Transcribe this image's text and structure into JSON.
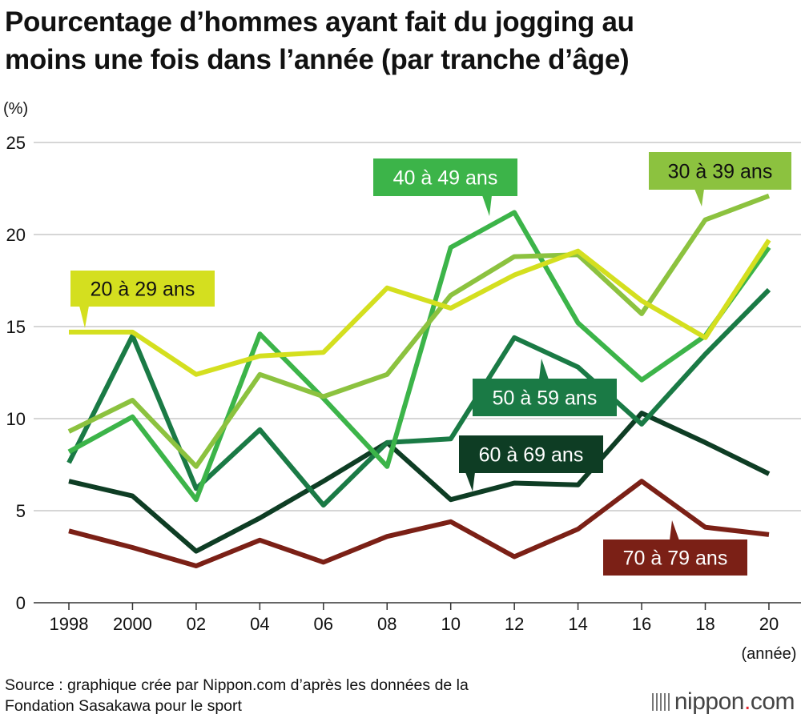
{
  "title_lines": [
    "Pourcentage d’hommes ayant fait du jogging au",
    "moins une fois dans l’année (par tranche d’âge)"
  ],
  "source_lines": [
    "Source : graphique crée par Nippon.com d’après les données de la",
    "Fondation Sasakawa pour le sport"
  ],
  "brand": {
    "text": "nippon",
    "dot": ".",
    "suffix": "com",
    "dot_color": "#e3262d"
  },
  "chart_data": {
    "type": "line",
    "x": [
      "1998",
      "2000",
      "02",
      "04",
      "06",
      "08",
      "10",
      "12",
      "14",
      "16",
      "18",
      "20"
    ],
    "ylabel": "(%)",
    "xlabel": "(année)",
    "ylim": [
      0,
      25
    ],
    "yticks": [
      "0",
      "5",
      "10",
      "15",
      "20",
      "25"
    ],
    "grid": true,
    "series": [
      {
        "name": "20 à 29 ans",
        "color": "#d4df1f",
        "text_color": "#111111",
        "values": [
          14.7,
          14.7,
          12.4,
          13.4,
          13.6,
          17.1,
          16.0,
          17.8,
          19.1,
          16.4,
          14.4,
          19.7
        ]
      },
      {
        "name": "30 à 39 ans",
        "color": "#8cc23f",
        "text_color": "#111111",
        "values": [
          9.3,
          11.0,
          7.4,
          12.4,
          11.2,
          12.4,
          16.7,
          18.8,
          18.9,
          15.7,
          20.8,
          22.1
        ]
      },
      {
        "name": "40 à 49 ans",
        "color": "#3cb449",
        "text_color": "#ffffff",
        "values": [
          8.2,
          10.1,
          5.6,
          14.6,
          11.1,
          7.4,
          19.3,
          21.2,
          15.2,
          12.1,
          14.5,
          19.3
        ]
      },
      {
        "name": "50 à 59 ans",
        "color": "#1a7a45",
        "text_color": "#ffffff",
        "values": [
          7.6,
          14.5,
          6.2,
          9.4,
          5.3,
          8.7,
          8.9,
          14.4,
          12.8,
          9.7,
          13.5,
          17.0
        ]
      },
      {
        "name": "60 à 69 ans",
        "color": "#0e3d24",
        "text_color": "#ffffff",
        "values": [
          6.6,
          5.8,
          2.8,
          4.6,
          6.6,
          8.7,
          5.6,
          6.5,
          6.4,
          10.3,
          8.7,
          7.0
        ]
      },
      {
        "name": "70 à 79 ans",
        "color": "#7b2016",
        "text_color": "#ffffff",
        "values": [
          3.9,
          3.0,
          2.0,
          3.4,
          2.2,
          3.6,
          4.4,
          2.5,
          4.0,
          6.6,
          4.1,
          3.7
        ]
      }
    ]
  }
}
